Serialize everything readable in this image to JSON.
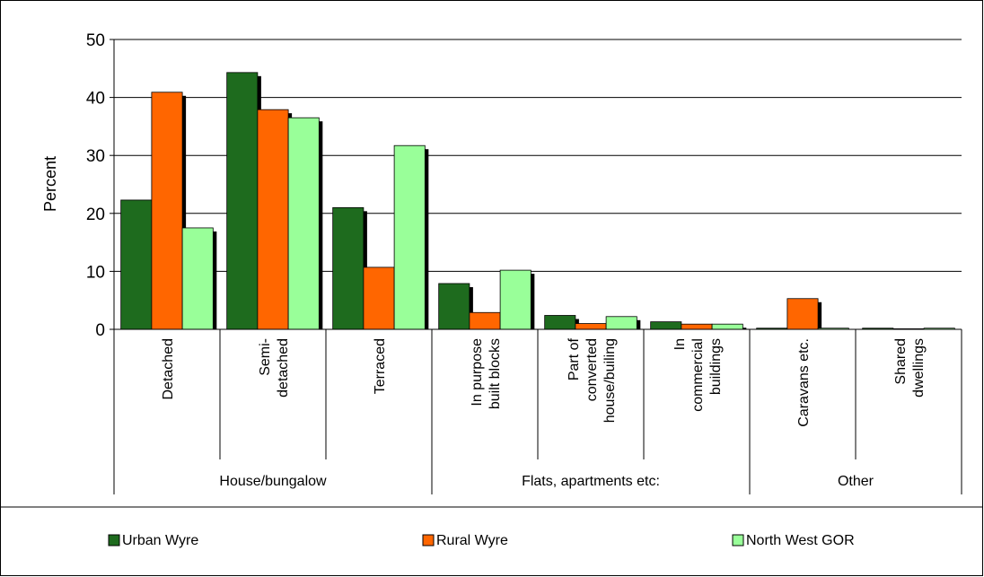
{
  "chart_data": {
    "type": "bar",
    "ylabel": "Percent",
    "ylim": [
      0,
      50
    ],
    "yticks": [
      "0",
      "10",
      "20",
      "30",
      "40",
      "50"
    ],
    "grid": true,
    "legend_position": "bottom",
    "categories": [
      "Detached",
      "Semi-\ndetached",
      "Terraced",
      "In purpose\nbuilt blocks",
      "Part of\nconverted\nhouse/builing",
      "In\ncommercial\nbuildings",
      "Caravans etc.",
      "Shared\ndwellings"
    ],
    "groups": [
      {
        "label": "House/bungalow",
        "from": 0,
        "to": 2
      },
      {
        "label": "Flats, apartments etc:",
        "from": 3,
        "to": 5
      },
      {
        "label": "Other",
        "from": 6,
        "to": 7
      }
    ],
    "series": [
      {
        "name": "Urban Wyre",
        "color": "#1e6b1e",
        "values": [
          22.3,
          44.3,
          21.0,
          7.9,
          2.4,
          1.3,
          0.2,
          0.2
        ]
      },
      {
        "name": "Rural Wyre",
        "color": "#ff6600",
        "values": [
          40.9,
          37.9,
          10.7,
          2.9,
          1.0,
          0.9,
          5.3,
          0.1
        ]
      },
      {
        "name": "North West GOR",
        "color": "#99ff99",
        "values": [
          17.5,
          36.5,
          31.7,
          10.2,
          2.2,
          0.9,
          0.2,
          0.2
        ]
      }
    ]
  }
}
